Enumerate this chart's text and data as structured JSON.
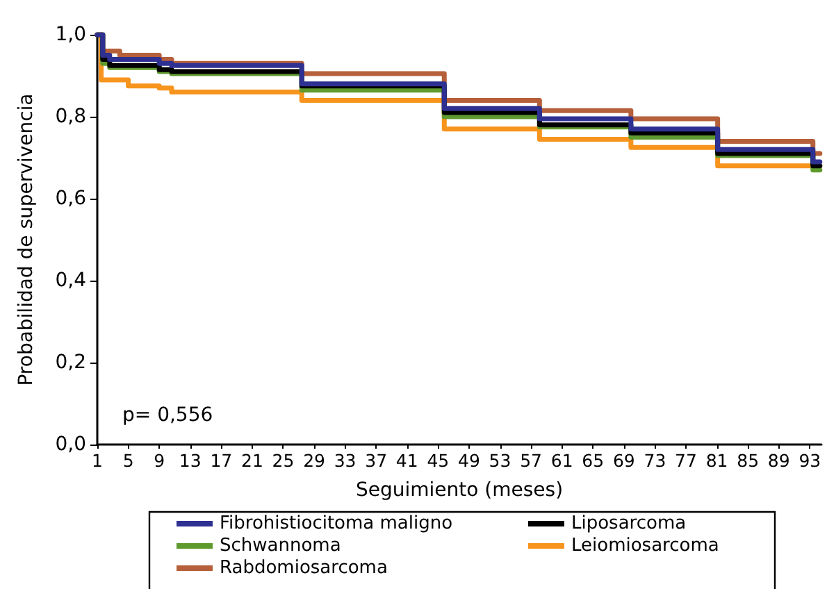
{
  "chart_data": {
    "type": "step",
    "xlabel": "Seguimiento (meses)",
    "ylabel": "Probabilidad de supervivencia",
    "annotations": [
      "p= 0,556"
    ],
    "xlim": [
      1,
      94.5
    ],
    "xticks": [
      1,
      5,
      9,
      13,
      17,
      21,
      25,
      29,
      33,
      37,
      41,
      45,
      49,
      53,
      57,
      61,
      65,
      69,
      73,
      77,
      81,
      85,
      89,
      93
    ],
    "ylim": [
      0,
      1
    ],
    "yticks": [
      {
        "value": 0,
        "label": "0,0"
      },
      {
        "value": 0.2,
        "label": "0,2"
      },
      {
        "value": 0.4,
        "label": "0,4"
      },
      {
        "value": 0.6,
        "label": "0,6"
      },
      {
        "value": 0.8,
        "label": "0,8"
      },
      {
        "value": 1,
        "label": "1,0"
      }
    ],
    "grid": false,
    "legend": "bottom",
    "marker": "none",
    "line_style": "solid",
    "series": [
      {
        "name": "Fibrohistiocitoma maligno",
        "color": "#2e3192",
        "x": [
          1,
          1.7,
          2.6,
          9,
          10.6,
          27.4,
          45.8,
          58.1,
          69.9,
          81.1,
          93.4,
          94.3
        ],
        "values": [
          1,
          0.95,
          0.94,
          0.93,
          0.925,
          0.88,
          0.82,
          0.795,
          0.77,
          0.72,
          0.69,
          0.69
        ]
      },
      {
        "name": "Liposarcoma",
        "color": "#000000",
        "x": [
          1,
          1.7,
          2.6,
          9,
          10.6,
          27.4,
          45.8,
          58.1,
          69.9,
          81.1,
          93.4,
          94.3
        ],
        "values": [
          1,
          0.94,
          0.925,
          0.915,
          0.91,
          0.875,
          0.81,
          0.78,
          0.76,
          0.71,
          0.68,
          0.68
        ]
      },
      {
        "name": "Schwannoma",
        "color": "#5f9a2e",
        "x": [
          1,
          1.7,
          2.6,
          9,
          10.6,
          27.4,
          45.8,
          58.1,
          69.9,
          81.1,
          93.4,
          94.3
        ],
        "values": [
          1,
          0.93,
          0.92,
          0.91,
          0.905,
          0.865,
          0.8,
          0.775,
          0.75,
          0.705,
          0.67,
          0.67
        ]
      },
      {
        "name": "Leiomiosarcoma",
        "color": "#f7941d",
        "x": [
          1,
          1.5,
          5,
          9,
          10.6,
          27.4,
          45.8,
          58.1,
          69.9,
          81.1,
          94.3
        ],
        "values": [
          1,
          0.89,
          0.875,
          0.87,
          0.86,
          0.84,
          0.77,
          0.745,
          0.725,
          0.68,
          0.68
        ]
      },
      {
        "name": "Rabdomiosarcoma",
        "color": "#b5603a",
        "x": [
          1,
          1.7,
          3.9,
          9,
          10.6,
          27.4,
          45.8,
          58.1,
          69.9,
          81.1,
          93.4,
          94.3
        ],
        "values": [
          1,
          0.96,
          0.95,
          0.94,
          0.93,
          0.905,
          0.84,
          0.815,
          0.795,
          0.74,
          0.71,
          0.71
        ]
      }
    ]
  }
}
